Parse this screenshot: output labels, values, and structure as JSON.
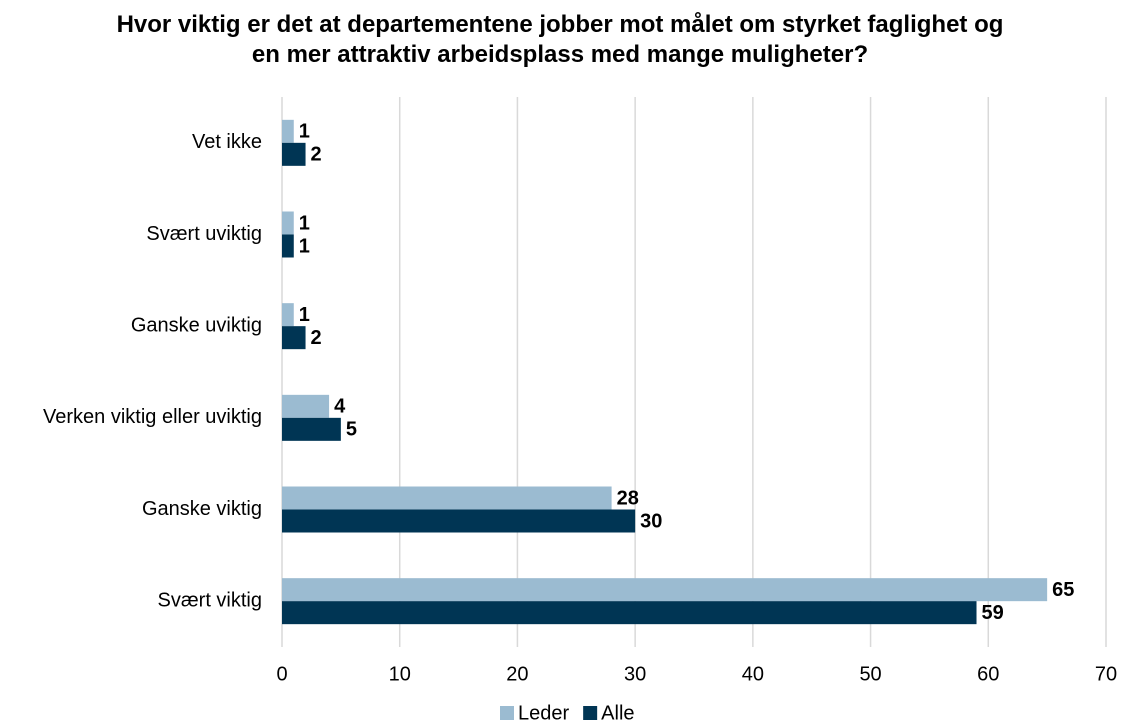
{
  "chart_data": {
    "type": "hbar",
    "title": "Hvor viktig er det at departementene jobber mot målet om styrket faglighet og en mer attraktiv arbeidsplass med mange muligheter?",
    "categories": [
      "Vet ikke",
      "Svært uviktig",
      "Ganske uviktig",
      "Verken viktig eller uviktig",
      "Ganske viktig",
      "Svært viktig"
    ],
    "series": [
      {
        "name": "Leder",
        "color": "#9bbbd1",
        "values": [
          1,
          1,
          1,
          4,
          28,
          65
        ]
      },
      {
        "name": "Alle",
        "color": "#003554",
        "values": [
          2,
          1,
          2,
          5,
          30,
          59
        ]
      }
    ],
    "xlim": [
      0,
      70
    ],
    "xticks": [
      0,
      10,
      20,
      30,
      40,
      50,
      60,
      70
    ],
    "grid": true,
    "legend": "bottom"
  }
}
